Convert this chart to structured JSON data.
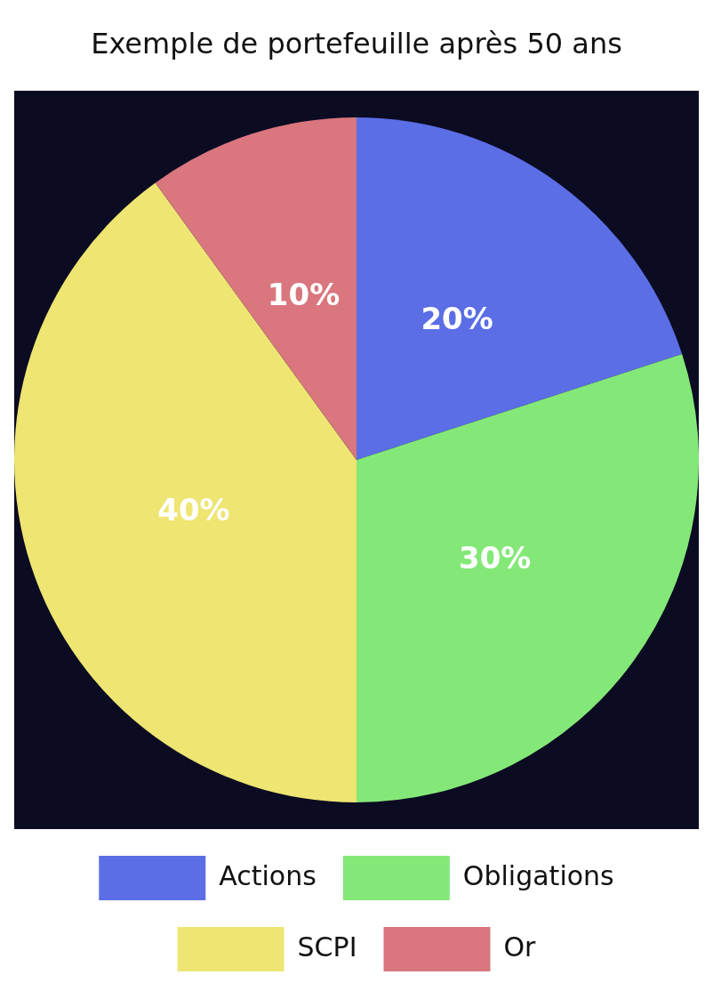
{
  "chart_data": {
    "type": "pie",
    "title": "Exemple de portefeuille après 50 ans",
    "categories": [
      "Actions",
      "Obligations",
      "SCPI",
      "Or"
    ],
    "values": [
      20,
      30,
      40,
      10
    ],
    "colors": [
      "#5b6ee6",
      "#84e878",
      "#eee572",
      "#d9767e"
    ],
    "value_labels": [
      "20%",
      "30%",
      "40%",
      "10%"
    ],
    "legend": "bottom"
  }
}
